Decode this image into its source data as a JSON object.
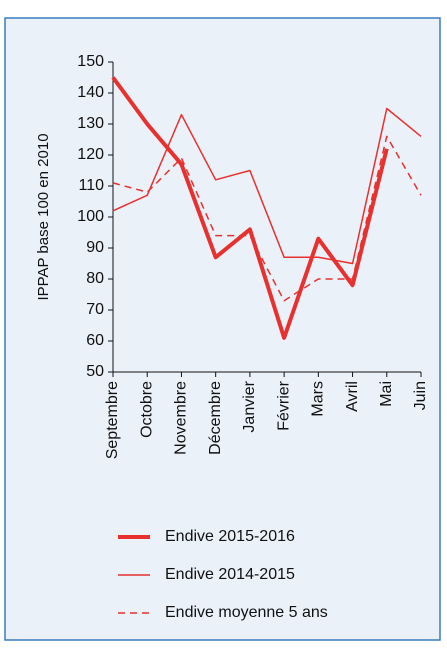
{
  "chart_data": {
    "type": "line",
    "y_label": "IPPAP base 100 en 2010",
    "categories": [
      "Septembre",
      "Octobre",
      "Novembre",
      "Décembre",
      "Janvier",
      "Février",
      "Mars",
      "Avril",
      "Mai",
      "Juin"
    ],
    "series": [
      {
        "name": "Endive 2015-2016",
        "color": "#e8312f",
        "line_width": 4,
        "dash": false,
        "values": [
          145,
          130,
          117,
          87,
          96,
          61,
          93,
          78,
          122,
          null
        ]
      },
      {
        "name": "Endive 2014-2015",
        "color": "#e8312f",
        "line_width": 1.5,
        "dash": false,
        "values": [
          102,
          107,
          133,
          112,
          115,
          87,
          87,
          85,
          135,
          126
        ]
      },
      {
        "name": "Endive moyenne 5 ans",
        "color": "#e8312f",
        "line_width": 1.5,
        "dash": true,
        "values": [
          111,
          108,
          119,
          94,
          94,
          73,
          80,
          80,
          126,
          107
        ]
      }
    ],
    "ylim": [
      50,
      150
    ],
    "yticks": [
      50,
      60,
      70,
      80,
      90,
      100,
      110,
      120,
      130,
      140,
      150
    ]
  }
}
